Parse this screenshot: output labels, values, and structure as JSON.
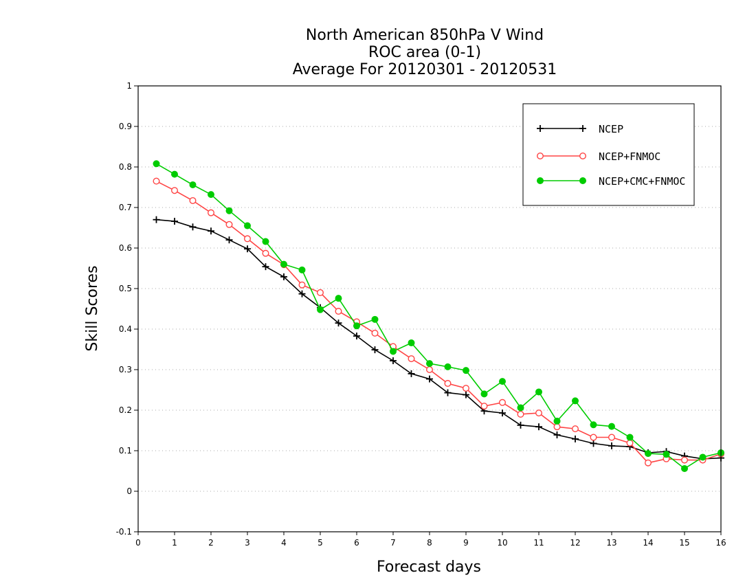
{
  "chart_data": {
    "type": "line",
    "title_lines": [
      "North American 850hPa V Wind",
      "ROC area (0-1)",
      "Average For 20120301 - 20120531"
    ],
    "xlabel": "Forecast days",
    "ylabel": "Skill Scores",
    "xlim": [
      0,
      16
    ],
    "ylim": [
      -0.1,
      1
    ],
    "xticks": [
      "0",
      "1",
      "2",
      "3",
      "4",
      "5",
      "6",
      "7",
      "8",
      "9",
      "10",
      "11",
      "12",
      "13",
      "14",
      "15",
      "16"
    ],
    "yticks": [
      "-0.1",
      "0",
      "0.1",
      "0.2",
      "0.3",
      "0.4",
      "0.5",
      "0.6",
      "0.7",
      "0.8",
      "0.9",
      "1"
    ],
    "grid": "horizontal dotted",
    "legend_position": "top-right",
    "x": [
      0.5,
      1,
      1.5,
      2,
      2.5,
      3,
      3.5,
      4,
      4.5,
      5,
      5.5,
      6,
      6.5,
      7,
      7.5,
      8,
      8.5,
      9,
      9.5,
      10,
      10.5,
      11,
      11.5,
      12,
      12.5,
      13,
      13.5,
      14,
      14.5,
      15,
      15.5,
      16
    ],
    "series": [
      {
        "name": "NCEP",
        "color": "#000000",
        "marker": "plus",
        "values": [
          0.67,
          0.666,
          0.652,
          0.642,
          0.62,
          0.598,
          0.554,
          0.529,
          0.487,
          0.453,
          0.415,
          0.383,
          0.349,
          0.322,
          0.29,
          0.277,
          0.243,
          0.238,
          0.198,
          0.193,
          0.163,
          0.159,
          0.139,
          0.129,
          0.118,
          0.112,
          0.11,
          0.095,
          0.098,
          0.087,
          0.08,
          0.082
        ]
      },
      {
        "name": "NCEP+FNMOC",
        "color": "#ff4444",
        "marker": "open-circle",
        "values": [
          0.765,
          0.742,
          0.717,
          0.687,
          0.658,
          0.623,
          0.587,
          0.559,
          0.509,
          0.49,
          0.444,
          0.418,
          0.39,
          0.357,
          0.327,
          0.3,
          0.266,
          0.254,
          0.21,
          0.219,
          0.19,
          0.193,
          0.159,
          0.154,
          0.133,
          0.133,
          0.119,
          0.07,
          0.08,
          0.077,
          0.077,
          0.092
        ]
      },
      {
        "name": "NCEP+CMC+FNMOC",
        "color": "#00cc00",
        "marker": "filled-circle",
        "values": [
          0.808,
          0.782,
          0.756,
          0.732,
          0.692,
          0.655,
          0.616,
          0.56,
          0.546,
          0.448,
          0.476,
          0.408,
          0.424,
          0.345,
          0.366,
          0.315,
          0.307,
          0.298,
          0.24,
          0.271,
          0.206,
          0.245,
          0.173,
          0.223,
          0.164,
          0.16,
          0.133,
          0.093,
          0.091,
          0.056,
          0.084,
          0.095
        ]
      }
    ]
  }
}
